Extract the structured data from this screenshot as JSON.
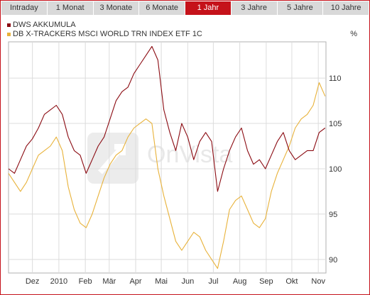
{
  "tabs": [
    {
      "label": "Intraday"
    },
    {
      "label": "1 Monat"
    },
    {
      "label": "3 Monate"
    },
    {
      "label": "6 Monate"
    },
    {
      "label": "1 Jahr",
      "active": true
    },
    {
      "label": "3 Jahre"
    },
    {
      "label": "5 Jahre"
    },
    {
      "label": "10 Jahre"
    }
  ],
  "colors": {
    "accent": "#c5121a",
    "tab_bg": "#d9d9d9",
    "series1": "#8b0b12",
    "series2": "#e8b23a",
    "grid": "#dcdcdc",
    "plot_border": "#b0b0b0",
    "watermark": "#e3e3e3"
  },
  "chart_data": {
    "type": "line",
    "unit": "%",
    "ylim": [
      88.5,
      114
    ],
    "y_ticks": [
      90,
      95,
      100,
      105,
      110
    ],
    "x_range": [
      "2009-11-03",
      "2010-11-10"
    ],
    "x_ticks": [
      {
        "date": "2009-12-01",
        "label": "Dez"
      },
      {
        "date": "2010-01-01",
        "label": "2010"
      },
      {
        "date": "2010-02-01",
        "label": "Feb"
      },
      {
        "date": "2010-03-01",
        "label": "Mär"
      },
      {
        "date": "2010-04-01",
        "label": "Apr"
      },
      {
        "date": "2010-05-01",
        "label": "Mai"
      },
      {
        "date": "2010-06-01",
        "label": "Jun"
      },
      {
        "date": "2010-07-01",
        "label": "Jul"
      },
      {
        "date": "2010-08-01",
        "label": "Aug"
      },
      {
        "date": "2010-09-01",
        "label": "Sep"
      },
      {
        "date": "2010-10-01",
        "label": "Okt"
      },
      {
        "date": "2010-11-01",
        "label": "Nov"
      }
    ],
    "grid": true,
    "legend_position": "top-left",
    "series": [
      {
        "name": "DWS AKKUMULA",
        "color": "#8b0b12",
        "x": [
          "2009-11-03",
          "2009-11-10",
          "2009-11-17",
          "2009-11-24",
          "2009-12-01",
          "2009-12-08",
          "2009-12-15",
          "2009-12-22",
          "2009-12-29",
          "2010-01-05",
          "2010-01-12",
          "2010-01-19",
          "2010-01-26",
          "2010-02-02",
          "2010-02-09",
          "2010-02-16",
          "2010-02-23",
          "2010-03-02",
          "2010-03-09",
          "2010-03-16",
          "2010-03-23",
          "2010-03-30",
          "2010-04-06",
          "2010-04-13",
          "2010-04-20",
          "2010-04-27",
          "2010-05-04",
          "2010-05-11",
          "2010-05-18",
          "2010-05-25",
          "2010-06-01",
          "2010-06-08",
          "2010-06-15",
          "2010-06-22",
          "2010-06-29",
          "2010-07-06",
          "2010-07-13",
          "2010-07-20",
          "2010-07-27",
          "2010-08-03",
          "2010-08-10",
          "2010-08-17",
          "2010-08-24",
          "2010-08-31",
          "2010-09-07",
          "2010-09-14",
          "2010-09-21",
          "2010-09-28",
          "2010-10-05",
          "2010-10-12",
          "2010-10-19",
          "2010-10-26",
          "2010-11-02",
          "2010-11-09"
        ],
        "y": [
          100,
          99.5,
          101,
          102.5,
          103.3,
          104.5,
          106,
          106.5,
          107,
          106,
          103.5,
          102,
          101.5,
          99.5,
          101,
          102.5,
          103.5,
          105.5,
          107.5,
          108.5,
          109,
          110.5,
          111.5,
          112.5,
          113.5,
          112,
          106.5,
          104,
          102,
          105,
          103.5,
          101,
          103,
          104,
          103,
          97.5,
          100,
          102,
          103.5,
          104.5,
          102,
          100.5,
          101,
          100,
          101.5,
          103,
          104,
          102,
          101,
          101.5,
          102,
          102,
          104,
          104.5
        ]
      },
      {
        "name": "DB X-TRACKERS MSCI WORLD TRN INDEX ETF 1C",
        "color": "#e8b23a",
        "x": [
          "2009-11-03",
          "2009-11-10",
          "2009-11-17",
          "2009-11-24",
          "2009-12-01",
          "2009-12-08",
          "2009-12-15",
          "2009-12-22",
          "2009-12-29",
          "2010-01-05",
          "2010-01-12",
          "2010-01-19",
          "2010-01-26",
          "2010-02-02",
          "2010-02-09",
          "2010-02-16",
          "2010-02-23",
          "2010-03-02",
          "2010-03-09",
          "2010-03-16",
          "2010-03-23",
          "2010-03-30",
          "2010-04-06",
          "2010-04-13",
          "2010-04-20",
          "2010-04-27",
          "2010-05-04",
          "2010-05-11",
          "2010-05-18",
          "2010-05-25",
          "2010-06-01",
          "2010-06-08",
          "2010-06-15",
          "2010-06-22",
          "2010-06-29",
          "2010-07-06",
          "2010-07-13",
          "2010-07-20",
          "2010-07-27",
          "2010-08-03",
          "2010-08-10",
          "2010-08-17",
          "2010-08-24",
          "2010-08-31",
          "2010-09-07",
          "2010-09-14",
          "2010-09-21",
          "2010-09-28",
          "2010-10-05",
          "2010-10-12",
          "2010-10-19",
          "2010-10-26",
          "2010-11-02",
          "2010-11-09"
        ],
        "y": [
          99.5,
          98.5,
          97.5,
          98.5,
          100,
          101.5,
          102,
          102.5,
          103.5,
          102,
          98,
          95.5,
          94,
          93.5,
          95,
          97,
          99,
          100.5,
          101.5,
          102,
          103.5,
          104.5,
          105,
          105.5,
          105,
          100,
          97,
          94.5,
          92,
          91,
          92,
          93,
          92.5,
          91,
          90,
          89,
          92,
          95.5,
          96.5,
          97,
          95.5,
          94,
          93.5,
          94.5,
          97.5,
          99.5,
          101,
          102.5,
          104.5,
          105.5,
          106,
          107,
          109.5,
          108
        ]
      }
    ]
  }
}
